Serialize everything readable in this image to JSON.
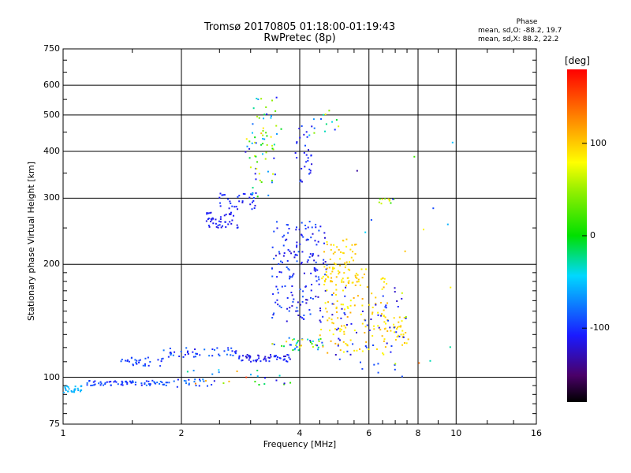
{
  "chart_data": {
    "type": "scatter",
    "title": "Tromsø 20170805 01:18:00-01:19:43",
    "subtitle": "RwPretec (8p)",
    "xlabel": "Frequency [MHz]",
    "ylabel": "Stationary phase Virtual Height [km]",
    "x_scale": "log",
    "y_scale": "log",
    "xlim": [
      1,
      16
    ],
    "ylim": [
      75,
      750
    ],
    "x_ticks": [
      "1",
      "2",
      "4",
      "6",
      "8",
      "10",
      "16"
    ],
    "y_ticks": [
      "75",
      "100",
      "200",
      "300",
      "400",
      "500",
      "600",
      "750"
    ],
    "x_ticks_values": [
      1,
      2,
      4,
      6,
      8,
      10,
      16
    ],
    "y_ticks_values": [
      75,
      100,
      200,
      300,
      400,
      500,
      600,
      750
    ],
    "x_grid": [
      2,
      4,
      6,
      8,
      10
    ],
    "y_grid": [
      100,
      200,
      300,
      400,
      500,
      600
    ],
    "grid": true,
    "colorbar": {
      "label": "[deg]",
      "range": [
        -180,
        180
      ],
      "ticks": [
        "100",
        "0",
        "-100"
      ],
      "ticks_values": [
        100,
        0,
        -100
      ]
    },
    "stats_title": "Phase",
    "stats": [
      "mean, sd,O: -88.2, 19.7",
      "mean, sd,X:  88.2, 22.2"
    ],
    "clusters": [
      {
        "f": [
          1.0,
          1.12
        ],
        "h": [
          91,
          95
        ],
        "phase": [
          -60,
          -50
        ],
        "n": 28
      },
      {
        "f": [
          1.15,
          1.9
        ],
        "h": [
          95,
          98
        ],
        "phase": [
          -110,
          -75
        ],
        "n": 70
      },
      {
        "f": [
          1.9,
          2.4
        ],
        "h": [
          94,
          99
        ],
        "phase": [
          -110,
          -70
        ],
        "n": 18
      },
      {
        "f": [
          1.4,
          1.8
        ],
        "h": [
          107,
          113
        ],
        "phase": [
          -110,
          -80
        ],
        "n": 30
      },
      {
        "f": [
          1.8,
          2.8
        ],
        "h": [
          113,
          120
        ],
        "phase": [
          -115,
          -75
        ],
        "n": 45
      },
      {
        "f": [
          2.8,
          3.8
        ],
        "h": [
          110,
          115
        ],
        "phase": [
          -125,
          -95
        ],
        "n": 55
      },
      {
        "f": [
          3.4,
          4.6
        ],
        "h": [
          118,
          128
        ],
        "phase": [
          -120,
          100
        ],
        "n": 40
      },
      {
        "f": [
          2.3,
          2.8
        ],
        "h": [
          250,
          275
        ],
        "phase": [
          -125,
          -95
        ],
        "n": 45
      },
      {
        "f": [
          2.5,
          3.1
        ],
        "h": [
          280,
          310
        ],
        "phase": [
          -120,
          -95
        ],
        "n": 35
      },
      {
        "f": [
          2.9,
          3.5
        ],
        "h": [
          300,
          440
        ],
        "phase": [
          -120,
          100
        ],
        "n": 45
      },
      {
        "f": [
          3.0,
          3.6
        ],
        "h": [
          440,
          560
        ],
        "phase": [
          -115,
          110
        ],
        "n": 25
      },
      {
        "f": [
          3.4,
          4.7
        ],
        "h": [
          140,
          260
        ],
        "phase": [
          -125,
          -85
        ],
        "n": 170
      },
      {
        "f": [
          3.9,
          4.3
        ],
        "h": [
          330,
          470
        ],
        "phase": [
          -120,
          -90
        ],
        "n": 30
      },
      {
        "f": [
          4.2,
          5.1
        ],
        "h": [
          440,
          520
        ],
        "phase": [
          -110,
          110
        ],
        "n": 14
      },
      {
        "f": [
          4.6,
          5.6
        ],
        "h": [
          175,
          235
        ],
        "phase": [
          80,
          110
        ],
        "n": 70
      },
      {
        "f": [
          4.5,
          6.7
        ],
        "h": [
          115,
          195
        ],
        "phase": [
          75,
          115
        ],
        "n": 130
      },
      {
        "f": [
          6.5,
          7.6
        ],
        "h": [
          120,
          150
        ],
        "phase": [
          80,
          105
        ],
        "n": 35
      },
      {
        "f": [
          4.8,
          7.5
        ],
        "h": [
          100,
          175
        ],
        "phase": [
          -125,
          -90
        ],
        "n": 60
      },
      {
        "f": [
          6.3,
          7.0
        ],
        "h": [
          290,
          300
        ],
        "phase": [
          -110,
          100
        ],
        "n": 10
      },
      {
        "f": [
          2.0,
          4.0
        ],
        "h": [
          95,
          105
        ],
        "phase": [
          -120,
          180
        ],
        "n": 25
      },
      {
        "f": [
          5.5,
          9.8
        ],
        "h": [
          100,
          520
        ],
        "phase": [
          -140,
          140
        ],
        "n": 18
      }
    ]
  }
}
